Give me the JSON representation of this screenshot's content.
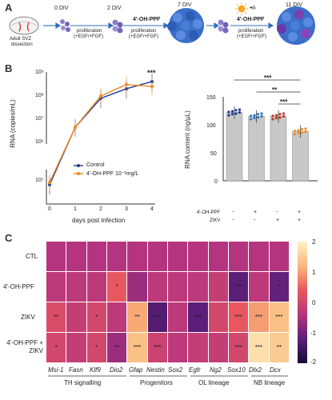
{
  "panelA": {
    "letter": "A",
    "dissection_label": [
      "Adult SVZ",
      "dissection"
    ],
    "timepoints": [
      "0 DIV",
      "2 DIV",
      "7 DIV",
      "11 DIV"
    ],
    "treatment1": "4'-OH-PPF",
    "treatment2": "4'-OH-PPF",
    "zikv_toggle": "+/-",
    "prolif1": [
      "proliferation",
      "(+EGF/+FGF)"
    ],
    "prolif2": [
      "proliferation",
      "(+EGF/+FGF)"
    ],
    "prolif3": [
      "proliferation",
      "(+EGF/+FGF)"
    ]
  },
  "panelB": {
    "letter": "B",
    "left_chart": {
      "type": "line",
      "ylabel": "RNA (copies/mL)",
      "xlabel": "days post infection",
      "x": [
        0,
        1,
        2,
        3,
        4
      ],
      "yticks": [
        "10⁹",
        "10⁸",
        "10⁷",
        "10⁶",
        "10⁵"
      ],
      "xticks": [
        "0",
        "1",
        "2",
        "3",
        "4"
      ],
      "significance": "***",
      "legend": [
        "Control",
        "4'-OH-PPF 10⁻¹mg/L"
      ]
    },
    "right_chart": {
      "type": "bar",
      "ylabel": "RNA content (ng/µL)",
      "yticks": [
        "150",
        "100",
        "50",
        "0"
      ],
      "row_labels": [
        "4'-OH-PPF",
        "ZIKV"
      ],
      "signs_row1": [
        "-",
        "+",
        "-",
        "+"
      ],
      "signs_row2": [
        "-",
        "-",
        "+",
        "+"
      ],
      "significance": [
        "***",
        "**",
        "***"
      ]
    }
  },
  "panelC": {
    "letter": "C",
    "row_labels": [
      "CTL",
      "4'-OH-PPF",
      "ZIKV",
      "4'-OH-PPF + ZIKV"
    ],
    "genes": [
      "Msi-1",
      "Fasn",
      "Klf9",
      "Dio2",
      "Gfap",
      "Nestin",
      "Sox2",
      "Egfr",
      "Ng2",
      "Sox10",
      "Dlx2",
      "Dcx"
    ],
    "groups": [
      "TH signalling",
      "Progenitors",
      "OL lineage",
      "NB lineage"
    ],
    "colorbar_ticks": [
      "2",
      "1",
      "0",
      "-1",
      "-2"
    ]
  },
  "chart_data": [
    {
      "type": "line",
      "xlabel": "days post infection",
      "ylabel": "RNA (copies/mL)",
      "y_scale": "log",
      "ylim": [
        100000,
        1000000000
      ],
      "x": [
        0,
        1,
        2,
        3,
        4
      ],
      "series": [
        {
          "name": "Control",
          "color": "#1f3a93",
          "values": [
            150000,
            5000000,
            80000000,
            200000000,
            400000000
          ]
        },
        {
          "name": "4'-OH-PPF 10⁻¹mg/L",
          "color": "#f08a24",
          "values": [
            200000,
            5000000,
            100000000,
            300000000,
            250000000
          ]
        }
      ],
      "annotations": [
        "***"
      ]
    },
    {
      "type": "bar",
      "ylabel": "RNA content (ng/µL)",
      "ylim": [
        0,
        150
      ],
      "categories": [
        "CTL",
        "4'-OH-PPF",
        "ZIKV",
        "4'-OH-PPF + ZIKV"
      ],
      "values": [
        122,
        115,
        115,
        88
      ],
      "point_colors": [
        "#1f3a93",
        "#2f78c4",
        "#c0392b",
        "#f08a24"
      ],
      "annotations": [
        "***",
        "**",
        "***"
      ]
    },
    {
      "type": "heatmap",
      "rows": [
        "CTL",
        "4'-OH-PPF",
        "ZIKV",
        "4'-OH-PPF + ZIKV"
      ],
      "columns": [
        "Msi-1",
        "Fasn",
        "Klf9",
        "Dio2",
        "Gfap",
        "Nestin",
        "Sox2",
        "Egfr",
        "Ng2",
        "Sox10",
        "Dlx2",
        "Dcx"
      ],
      "values": [
        [
          0,
          0,
          0,
          0,
          0,
          0,
          0,
          0,
          0,
          0,
          0,
          0
        ],
        [
          0.1,
          0.1,
          0.1,
          0.7,
          -0.3,
          0.1,
          0.1,
          0.1,
          0.2,
          -1.0,
          0.1,
          -0.9
        ],
        [
          0.5,
          0.2,
          0.4,
          0.1,
          1.3,
          -1.1,
          0.1,
          -1.0,
          0.4,
          0.7,
          1.2,
          1.5
        ],
        [
          0.4,
          0.2,
          0.4,
          -0.3,
          1.5,
          0.3,
          0.1,
          0.2,
          0.2,
          0.4,
          1.8,
          1.6
        ]
      ],
      "stars": [
        [
          "",
          "",
          "",
          "",
          "",
          "",
          "",
          "",
          "",
          "",
          "",
          ""
        ],
        [
          "",
          "",
          "",
          "*",
          "",
          "",
          "",
          "",
          "",
          "***",
          "",
          "*"
        ],
        [
          "**",
          "",
          "*",
          "",
          "**",
          "***",
          "",
          "***",
          "",
          "***",
          "***",
          "***"
        ],
        [
          "*",
          "",
          "*",
          "**",
          "***",
          "***",
          "",
          "",
          "",
          "***",
          "***",
          "**"
        ]
      ],
      "colorbar": {
        "min": -2,
        "max": 2
      }
    }
  ]
}
